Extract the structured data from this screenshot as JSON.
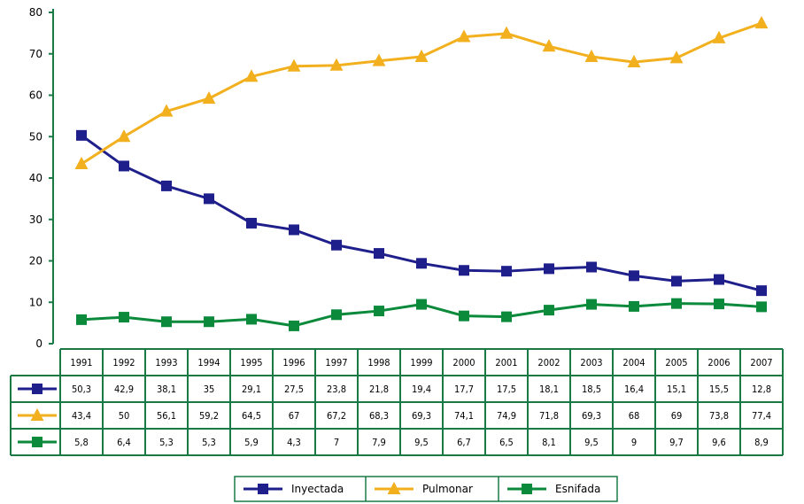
{
  "chart_data": {
    "type": "line",
    "title": "",
    "xlabel": "",
    "ylabel": "",
    "ylim": [
      0,
      80
    ],
    "yticks": [
      0,
      10,
      20,
      30,
      40,
      50,
      60,
      70,
      80
    ],
    "x": [
      "1991",
      "1992",
      "1993",
      "1994",
      "1995",
      "1996",
      "1997",
      "1998",
      "1999",
      "2000",
      "2001",
      "2002",
      "2003",
      "2004",
      "2005",
      "2006",
      "2007"
    ],
    "series": [
      {
        "name": "Inyectada",
        "color": "#1f1f8c",
        "marker": "square",
        "values": [
          50.3,
          42.9,
          38.1,
          35,
          29.1,
          27.5,
          23.8,
          21.8,
          19.4,
          17.7,
          17.5,
          18.1,
          18.5,
          16.4,
          15.1,
          15.5,
          12.8
        ],
        "labels": [
          "50,3",
          "42,9",
          "38,1",
          "35",
          "29,1",
          "27,5",
          "23,8",
          "21,8",
          "19,4",
          "17,7",
          "17,5",
          "18,1",
          "18,5",
          "16,4",
          "15,1",
          "15,5",
          "12,8"
        ]
      },
      {
        "name": "Pulmonar",
        "color": "#f2b01e",
        "marker": "triangle",
        "values": [
          43.4,
          50,
          56.1,
          59.2,
          64.5,
          67,
          67.2,
          68.3,
          69.3,
          74.1,
          74.9,
          71.8,
          69.3,
          68,
          69,
          73.8,
          77.4
        ],
        "labels": [
          "43,4",
          "50",
          "56,1",
          "59,2",
          "64,5",
          "67",
          "67,2",
          "68,3",
          "69,3",
          "74,1",
          "74,9",
          "71,8",
          "69,3",
          "68",
          "69",
          "73,8",
          "77,4"
        ]
      },
      {
        "name": "Esnifada",
        "color": "#0a8a3a",
        "marker": "square",
        "values": [
          5.8,
          6.4,
          5.3,
          5.3,
          5.9,
          4.3,
          7,
          7.9,
          9.5,
          6.7,
          6.5,
          8.1,
          9.5,
          9,
          9.7,
          9.6,
          8.9
        ],
        "labels": [
          "5,8",
          "6,4",
          "5,3",
          "5,3",
          "5,9",
          "4,3",
          "7",
          "7,9",
          "9,5",
          "6,7",
          "6,5",
          "8,1",
          "9,5",
          "9",
          "9,7",
          "9,6",
          "8,9"
        ]
      }
    ],
    "grid": false,
    "data_table": true,
    "legend_position": "bottom-center"
  },
  "colors": {
    "axis": "#1a7a44",
    "table_border": "#1a7a44"
  }
}
